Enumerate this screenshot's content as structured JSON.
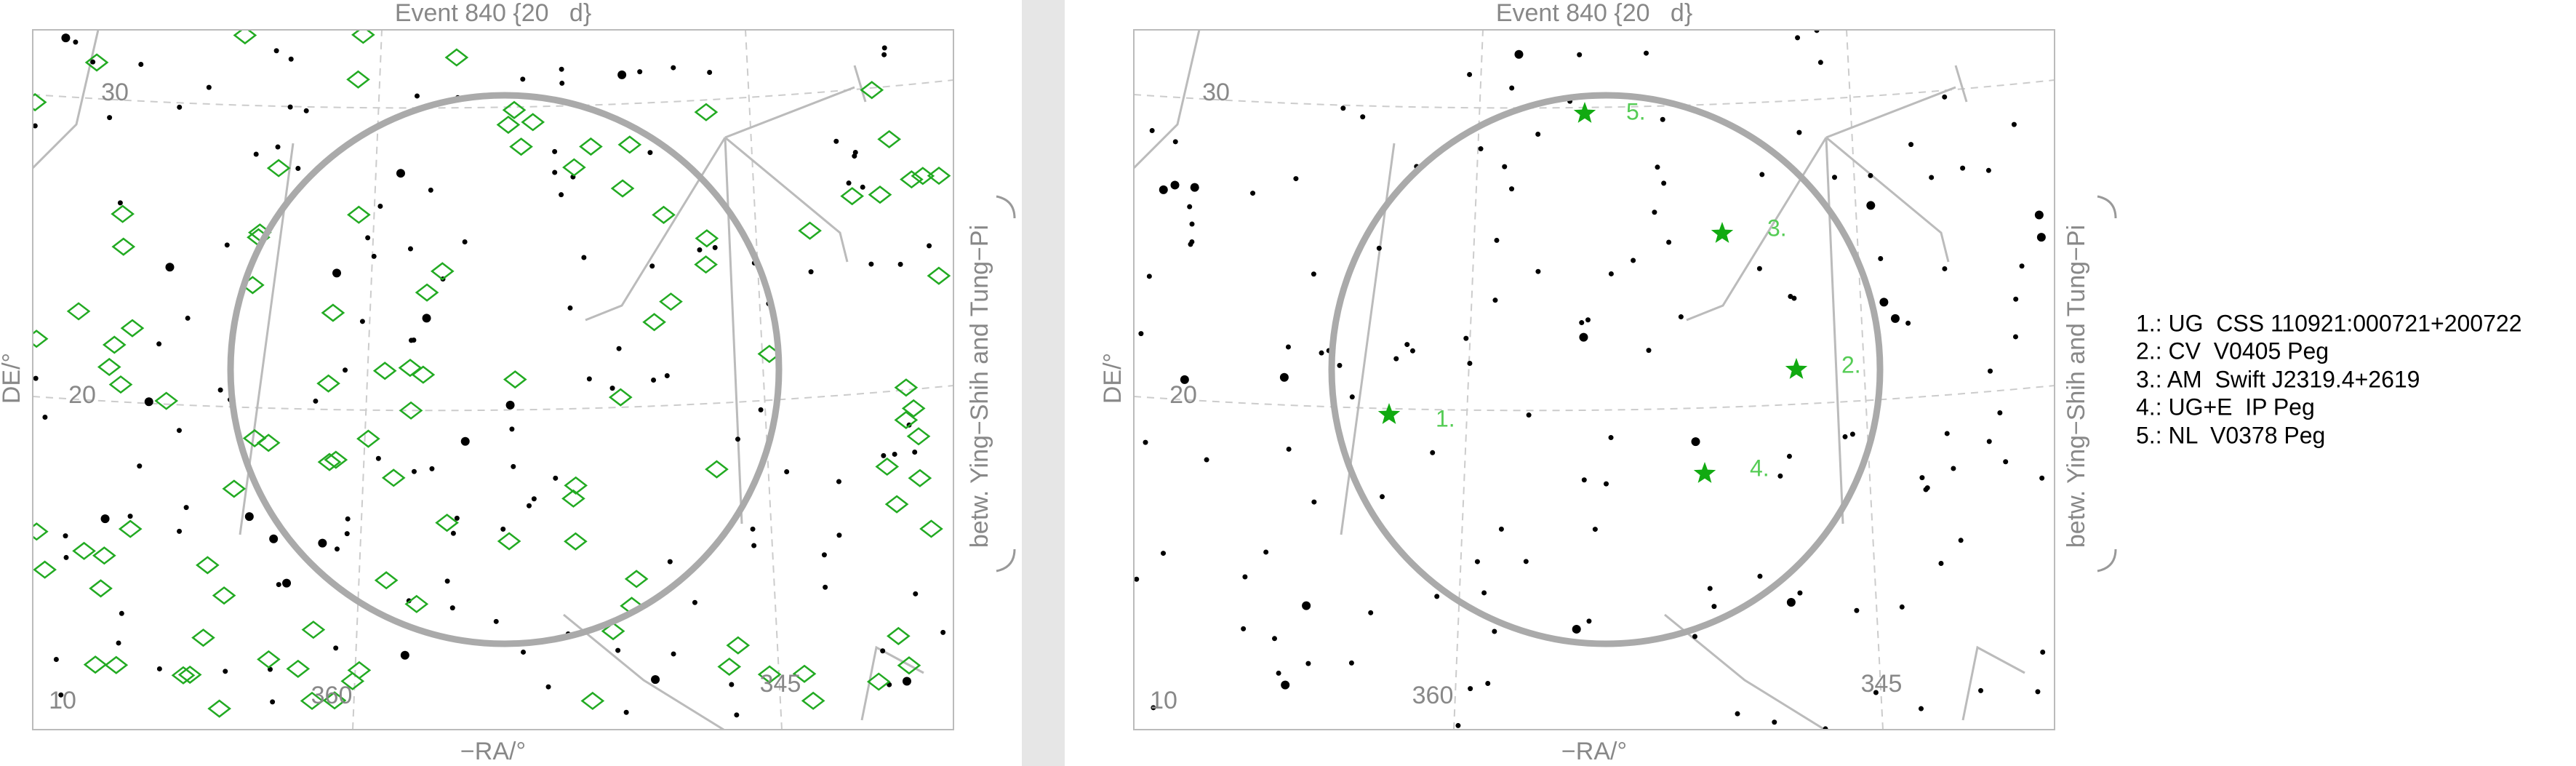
{
  "left_panel": {
    "title": "Event 840 {20   d}",
    "x_label": "−RA/°",
    "y_label": "DE/°",
    "side_label": "betw. Ying−Shih and Tung−Pi",
    "grid_labels": [
      "30",
      "20",
      "10",
      "360",
      "345"
    ]
  },
  "right_panel": {
    "title": "Event 840 {20   d}",
    "x_label": "−RA/°",
    "y_label": "DE/°",
    "side_label": "betw. Ying−Shih and Tung−Pi",
    "grid_labels": [
      "30",
      "20",
      "10",
      "360",
      "345"
    ],
    "markers": [
      "1.",
      "2.",
      "3.",
      "4.",
      "5."
    ]
  },
  "legend": [
    "1.: UG  CSS 110921:000721+200722",
    "2.: CV  V0405 Peg",
    "3.: AM  Swift J2319.4+2619",
    "4.: UG+E  IP Peg",
    "5.: NL  V0378 Peg"
  ]
}
